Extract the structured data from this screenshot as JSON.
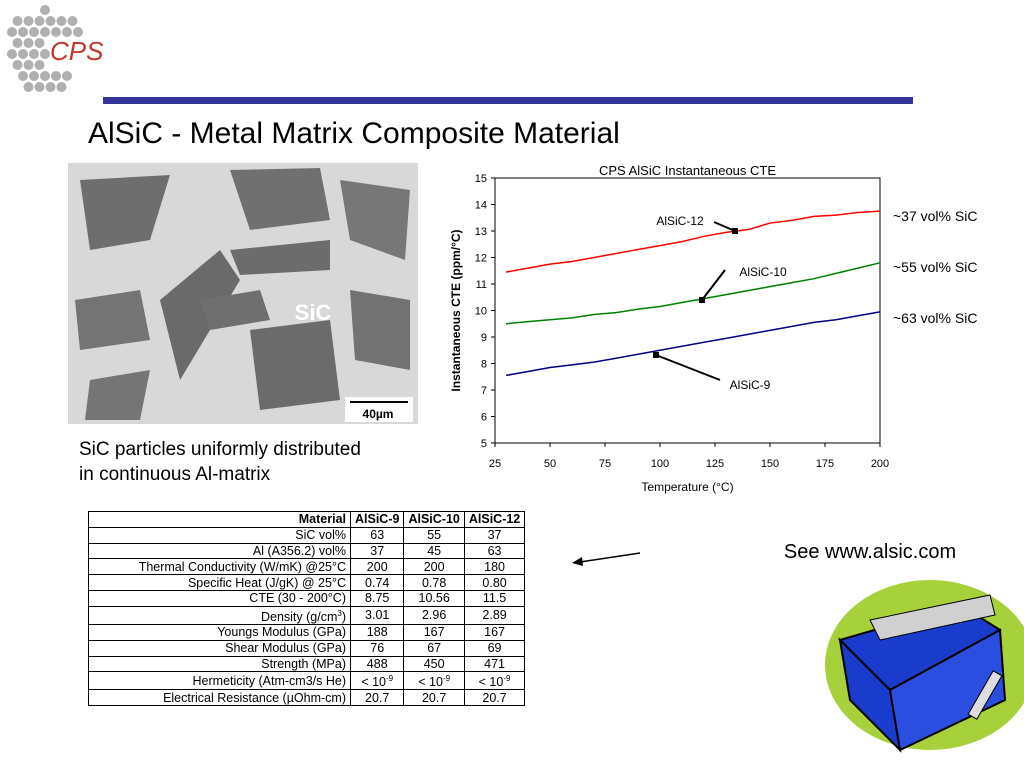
{
  "header": {
    "logo": "CPS",
    "title": "AlSiC - Metal Matrix Composite Material"
  },
  "image": {
    "label": "SiC",
    "scale": "40µm"
  },
  "caption": [
    "SiC particles uniformly distributed",
    "in continuous Al-matrix"
  ],
  "note": "See www.alsic.com",
  "chart_data": {
    "type": "line",
    "title": "CPS AlSiC Instantaneous CTE",
    "x_label": "Temperature (°C)",
    "y_label": "Instantaneous CTE (ppm/°C)",
    "xlim": [
      25,
      200
    ],
    "xticks": [
      25,
      50,
      75,
      100,
      125,
      150,
      175,
      200
    ],
    "ylim": [
      5,
      15
    ],
    "yticks": [
      5,
      6,
      7,
      8,
      9,
      10,
      11,
      12,
      13,
      14,
      15
    ],
    "x": [
      30,
      40,
      50,
      60,
      70,
      80,
      90,
      100,
      110,
      120,
      130,
      140,
      150,
      160,
      170,
      180,
      190,
      200
    ],
    "series": [
      {
        "name": "AlSiC-12",
        "label": "~37 vol% SiC",
        "color": "#ff0000",
        "values": [
          11.45,
          11.6,
          11.75,
          11.85,
          12.0,
          12.15,
          12.3,
          12.45,
          12.6,
          12.8,
          12.95,
          13.05,
          13.3,
          13.4,
          13.55,
          13.6,
          13.7,
          13.75
        ]
      },
      {
        "name": "AlSiC-10",
        "label": "~55 vol% SiC",
        "color": "#008000",
        "values": [
          9.5,
          9.58,
          9.65,
          9.72,
          9.85,
          9.92,
          10.05,
          10.15,
          10.3,
          10.45,
          10.6,
          10.75,
          10.9,
          11.05,
          11.2,
          11.4,
          11.6,
          11.8
        ]
      },
      {
        "name": "AlSiC-9",
        "label": "~63 vol% SiC",
        "color": "#000080",
        "values": [
          7.55,
          7.7,
          7.85,
          7.95,
          8.05,
          8.2,
          8.35,
          8.5,
          8.65,
          8.8,
          8.95,
          9.1,
          9.25,
          9.4,
          9.55,
          9.65,
          9.8,
          9.95
        ]
      }
    ]
  },
  "table": {
    "header": [
      "Material",
      "AlSiC-9",
      "AlSiC-10",
      "AlSiC-12"
    ],
    "rows": [
      [
        "SiC vol%",
        "63",
        "55",
        "37"
      ],
      [
        "Al (A356.2) vol%",
        "37",
        "45",
        "63"
      ],
      [
        "Thermal Conductivity (W/mK) @25°C",
        "200",
        "200",
        "180"
      ],
      [
        "Specific Heat (J/gK) @ 25°C",
        "0.74",
        "0.78",
        "0.80"
      ],
      [
        "CTE (30 - 200°C)",
        "8.75",
        "10.56",
        "11.5"
      ],
      [
        {
          "base": "Density (g/cm",
          "sup": "3",
          "tail": ")"
        },
        "3.01",
        "2.96",
        "2.89"
      ],
      [
        "Youngs Modulus (GPa)",
        "188",
        "167",
        "167"
      ],
      [
        "Shear Modulus (GPa)",
        "76",
        "67",
        "69"
      ],
      [
        "Strength (MPa)",
        "488",
        "450",
        "471"
      ],
      [
        "Hermeticity (Atm-cm3/s He)",
        {
          "base": "< 10",
          "sup": "-9"
        },
        {
          "base": "< 10",
          "sup": "-9"
        },
        {
          "base": "< 10",
          "sup": "-9"
        }
      ],
      [
        "Electrical Resistance (µOhm-cm)",
        "20.7",
        "20.7",
        "20.7"
      ]
    ]
  }
}
